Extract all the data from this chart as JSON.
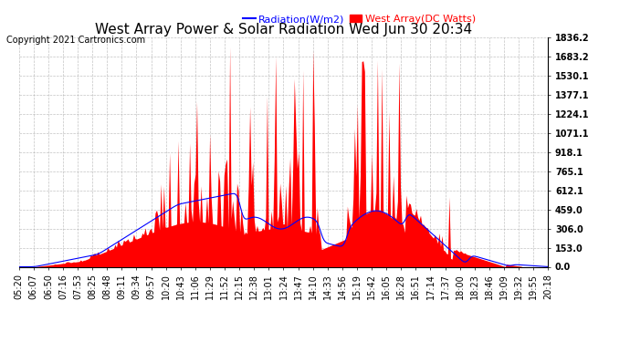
{
  "title": "West Array Power & Solar Radiation Wed Jun 30 20:34",
  "copyright": "Copyright 2021 Cartronics.com",
  "legend_radiation": "Radiation(W/m2)",
  "legend_west": "West Array(DC Watts)",
  "radiation_color": "blue",
  "west_color": "red",
  "background_color": "#ffffff",
  "grid_color": "#aaaaaa",
  "yticks": [
    0.0,
    153.0,
    306.0,
    459.0,
    612.1,
    765.1,
    918.1,
    1071.1,
    1224.1,
    1377.1,
    1530.1,
    1683.2,
    1836.2
  ],
  "ymax": 1836.2,
  "ymin": 0.0,
  "xtick_labels": [
    "05:20",
    "06:07",
    "06:50",
    "07:16",
    "07:53",
    "08:25",
    "08:48",
    "09:11",
    "09:34",
    "09:57",
    "10:20",
    "10:43",
    "11:06",
    "11:29",
    "11:52",
    "12:15",
    "12:38",
    "13:01",
    "13:24",
    "13:47",
    "14:10",
    "14:33",
    "14:56",
    "15:19",
    "15:42",
    "16:05",
    "16:28",
    "16:51",
    "17:14",
    "17:37",
    "18:00",
    "18:23",
    "18:46",
    "19:09",
    "19:32",
    "19:55",
    "20:18"
  ],
  "title_fontsize": 11,
  "tick_fontsize": 7,
  "legend_fontsize": 8,
  "copyright_fontsize": 7
}
